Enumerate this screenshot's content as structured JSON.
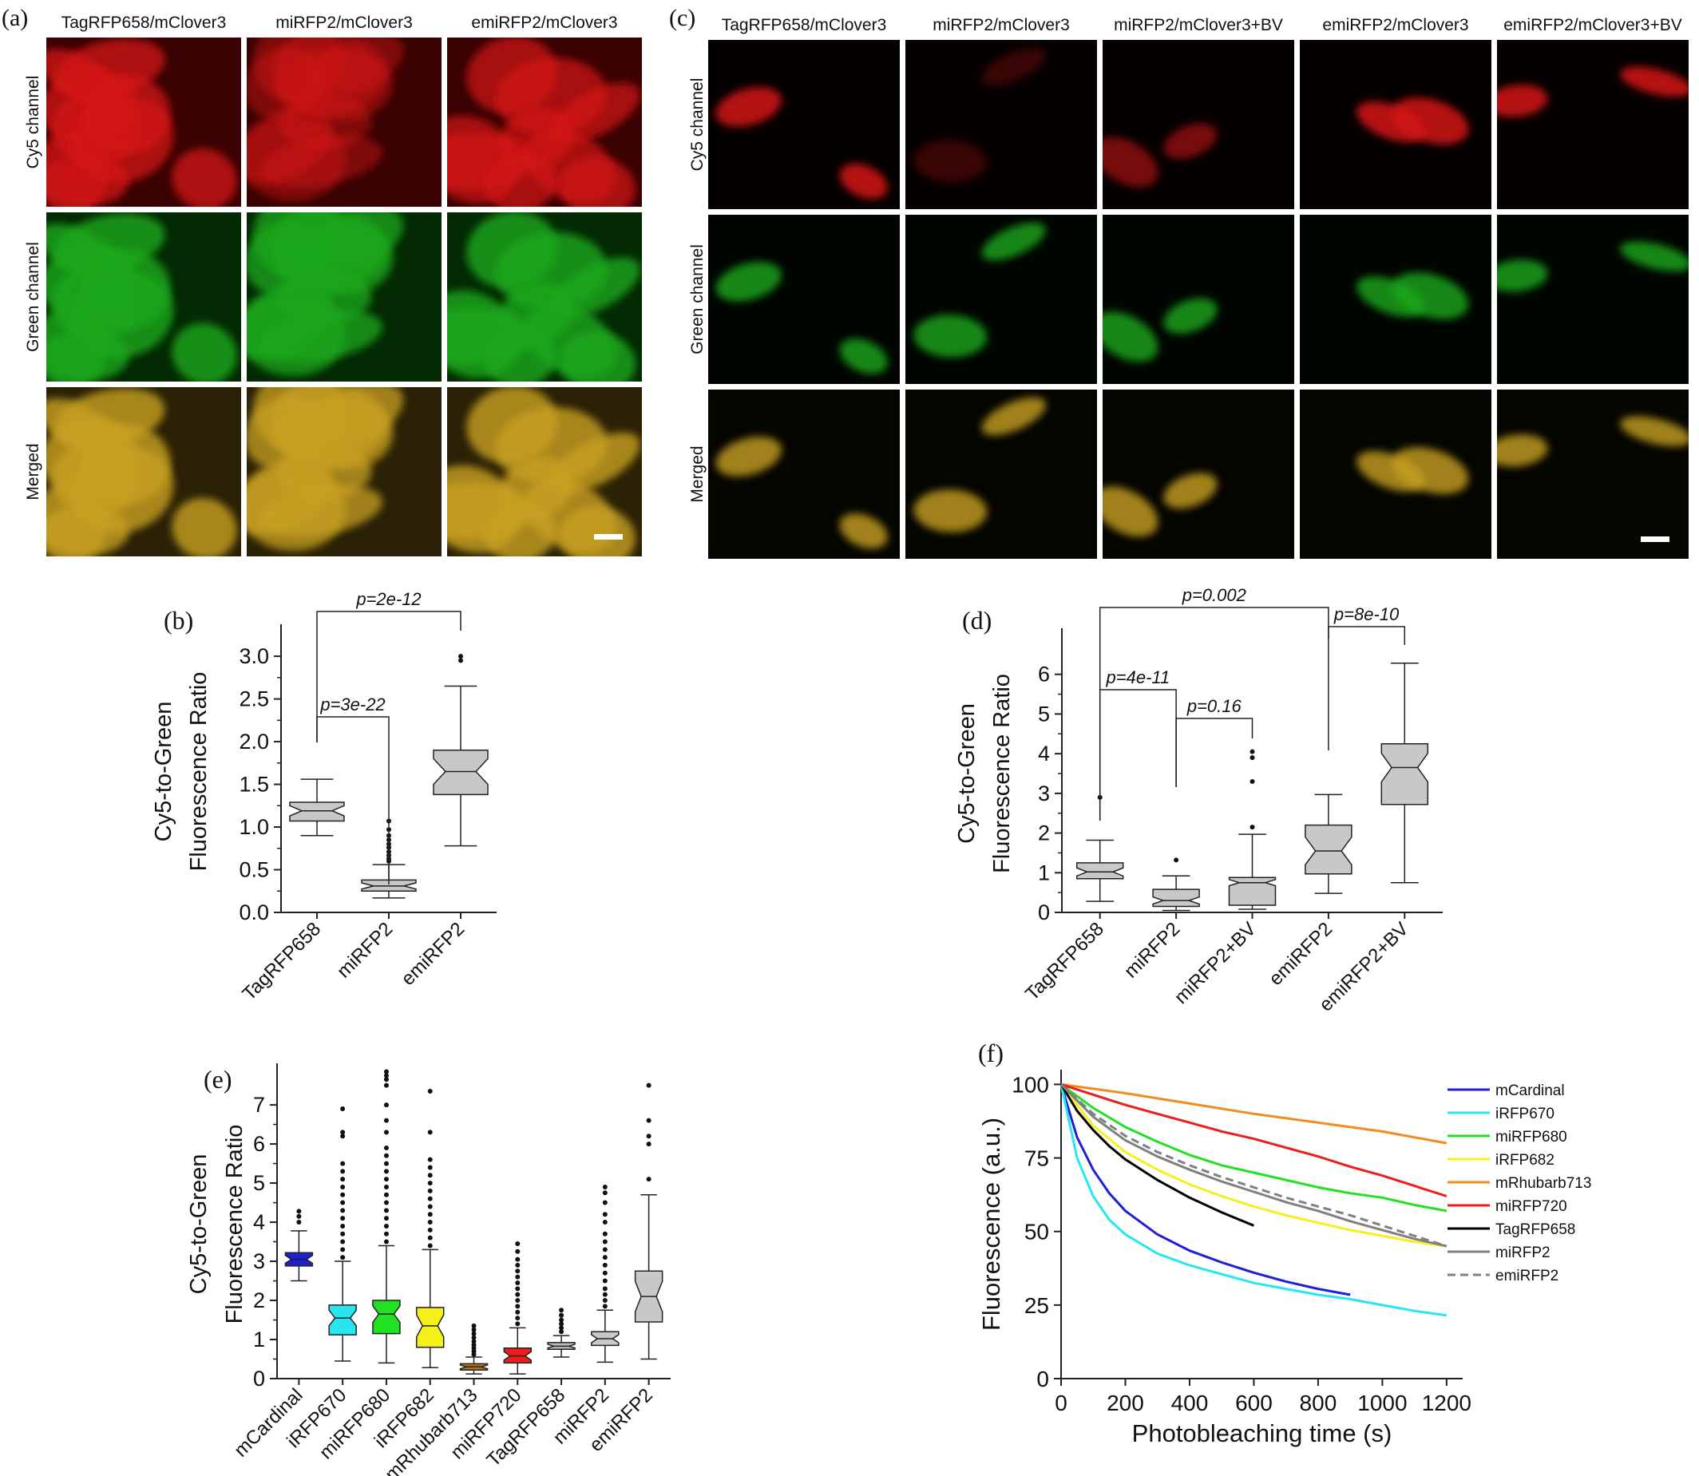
{
  "panels_images": [
    {
      "tag": "(a)",
      "columns": [
        "TagRFP658/mClover3",
        "miRFP2/mClover3",
        "emiRFP2/mClover3"
      ],
      "rows": [
        "Cy5 channel",
        "Green channel",
        "Merged"
      ]
    },
    {
      "tag": "(c)",
      "columns": [
        "TagRFP658/mClover3",
        "miRFP2/mClover3",
        "miRFP2/mClover3+BV",
        "emiRFP2/mClover3",
        "emiRFP2/mClover3+BV"
      ],
      "rows": [
        "Cy5 channel",
        "Green channel",
        "Merged"
      ]
    }
  ],
  "colors": {
    "red_channel": "#d41818",
    "green_channel": "#1fa81f",
    "merged": "#c8a021",
    "box_grey": "#c8c8c8",
    "mCardinal": "#1f1fd6",
    "iRFP670": "#27e6f0",
    "miRFP680": "#22e022",
    "iRFP682": "#f5f01a",
    "mRhubarb713": "#b87414",
    "miRFP720": "#ee1c1c",
    "TagRFP658": "#bdbdbd",
    "miRFP2": "#c8c8c8",
    "emiRFP2": "#c8c8c8"
  },
  "chart_data": [
    {
      "tag": "(b)",
      "type": "boxplot",
      "ylabel_line1": "Cy5-to-Green",
      "ylabel_line2": "Fluorescence Ratio",
      "ylim": [
        0,
        3.3
      ],
      "yticks": [
        "0.0",
        "0.5",
        "1.0",
        "1.5",
        "2.0",
        "2.5",
        "3.0"
      ],
      "categories": [
        "TagRFP658",
        "miRFP2",
        "emiRFP2"
      ],
      "boxes": [
        {
          "name": "TagRFP658",
          "whisker_low": 0.9,
          "q1": 1.07,
          "median": 1.19,
          "q3": 1.29,
          "whisker_high": 1.56,
          "outliers": []
        },
        {
          "name": "miRFP2",
          "whisker_low": 0.17,
          "q1": 0.25,
          "median": 0.31,
          "q3": 0.38,
          "whisker_high": 0.56,
          "outliers": [
            0.6,
            0.63,
            0.67,
            0.71,
            0.76,
            0.8,
            0.85,
            0.9,
            0.97,
            1.07
          ]
        },
        {
          "name": "emiRFP2",
          "whisker_low": 0.78,
          "q1": 1.38,
          "median": 1.65,
          "q3": 1.9,
          "whisker_high": 2.65,
          "outliers": [
            2.95,
            3.0
          ]
        }
      ],
      "brackets": [
        {
          "from": 0,
          "to": 1,
          "label": "p=3e-22"
        },
        {
          "from": 0,
          "to": 2,
          "label": "p=2e-12"
        }
      ]
    },
    {
      "tag": "(d)",
      "type": "boxplot",
      "ylabel_line1": "Cy5-to-Green",
      "ylabel_line2": "Fluorescence Ratio",
      "ylim": [
        0,
        7
      ],
      "yticks": [
        "0",
        "1",
        "2",
        "3",
        "4",
        "5",
        "6"
      ],
      "categories": [
        "TagRFP658",
        "miRFP2",
        "miRFP2+BV",
        "emiRFP2",
        "emiRFP2+BV"
      ],
      "boxes": [
        {
          "name": "TagRFP658",
          "whisker_low": 0.28,
          "q1": 0.85,
          "median": 1.02,
          "q3": 1.25,
          "whisker_high": 1.82,
          "outliers": [
            2.9
          ]
        },
        {
          "name": "miRFP2",
          "whisker_low": 0.05,
          "q1": 0.15,
          "median": 0.3,
          "q3": 0.58,
          "whisker_high": 0.92,
          "outliers": [
            1.32
          ]
        },
        {
          "name": "miRFP2+BV",
          "whisker_low": 0.08,
          "q1": 0.18,
          "median": 0.75,
          "q3": 0.88,
          "whisker_high": 1.97,
          "outliers": [
            2.15,
            3.3,
            3.9,
            4.05
          ]
        },
        {
          "name": "emiRFP2",
          "whisker_low": 0.48,
          "q1": 0.97,
          "median": 1.55,
          "q3": 2.2,
          "whisker_high": 2.97,
          "outliers": []
        },
        {
          "name": "emiRFP2+BV",
          "whisker_low": 0.75,
          "q1": 2.72,
          "median": 3.65,
          "q3": 4.25,
          "whisker_high": 6.28,
          "outliers": []
        }
      ],
      "brackets": [
        {
          "from": 0,
          "to": 1,
          "label": "p=4e-11"
        },
        {
          "from": 1,
          "to": 2,
          "label": "p=0.16"
        },
        {
          "from": 0,
          "to": 3,
          "label": "p=0.002"
        },
        {
          "from": 3,
          "to": 4,
          "label": "p=8e-10"
        }
      ]
    },
    {
      "tag": "(e)",
      "type": "boxplot",
      "ylabel_line1": "Cy5-to-Green",
      "ylabel_line2": "Fluorescence Ratio",
      "ylim": [
        0,
        7.9
      ],
      "yticks": [
        "0",
        "1",
        "2",
        "3",
        "4",
        "5",
        "6",
        "7"
      ],
      "categories": [
        "mCardinal",
        "iRFP670",
        "miRFP680",
        "iRFP682",
        "mRhubarb713",
        "miRFP720",
        "TagRFP658",
        "miRFP2",
        "emiRFP2"
      ],
      "boxes": [
        {
          "name": "mCardinal",
          "whisker_low": 2.5,
          "q1": 2.88,
          "median": 3.05,
          "q3": 3.22,
          "whisker_high": 3.78,
          "outliers": [
            4.0,
            4.15,
            4.28
          ]
        },
        {
          "name": "iRFP670",
          "whisker_low": 0.45,
          "q1": 1.12,
          "median": 1.55,
          "q3": 1.88,
          "whisker_high": 3.0,
          "outliers": [
            3.1,
            3.3,
            3.5,
            3.7,
            3.9,
            4.1,
            4.3,
            4.5,
            4.7,
            4.9,
            5.1,
            5.3,
            5.5,
            6.2,
            6.3,
            6.9
          ]
        },
        {
          "name": "miRFP680",
          "whisker_low": 0.4,
          "q1": 1.15,
          "median": 1.65,
          "q3": 2.0,
          "whisker_high": 3.4,
          "outliers": [
            3.5,
            3.7,
            3.9,
            4.1,
            4.3,
            4.5,
            4.7,
            4.9,
            5.1,
            5.3,
            5.5,
            5.7,
            5.9,
            6.3,
            6.6,
            7.0,
            7.5,
            7.65,
            7.75,
            7.85
          ]
        },
        {
          "name": "iRFP682",
          "whisker_low": 0.28,
          "q1": 0.8,
          "median": 1.35,
          "q3": 1.82,
          "whisker_high": 3.3,
          "outliers": [
            3.4,
            3.6,
            3.8,
            4.0,
            4.2,
            4.4,
            4.6,
            4.8,
            5.0,
            5.2,
            5.4,
            5.6,
            6.3,
            7.35
          ]
        },
        {
          "name": "mRhubarb713",
          "whisker_low": 0.12,
          "q1": 0.22,
          "median": 0.3,
          "q3": 0.38,
          "whisker_high": 0.55,
          "outliers": [
            0.62,
            0.7,
            0.78,
            0.86,
            0.95,
            1.05,
            1.15,
            1.25,
            1.35
          ]
        },
        {
          "name": "miRFP720",
          "whisker_low": 0.12,
          "q1": 0.4,
          "median": 0.58,
          "q3": 0.78,
          "whisker_high": 1.3,
          "outliers": [
            1.4,
            1.55,
            1.7,
            1.85,
            2.0,
            2.15,
            2.3,
            2.45,
            2.6,
            2.75,
            2.9,
            3.05,
            3.25,
            3.45
          ]
        },
        {
          "name": "TagRFP658",
          "whisker_low": 0.55,
          "q1": 0.75,
          "median": 0.83,
          "q3": 0.92,
          "whisker_high": 1.1,
          "outliers": [
            1.2,
            1.3,
            1.4,
            1.5,
            1.62,
            1.75
          ]
        },
        {
          "name": "miRFP2",
          "whisker_low": 0.42,
          "q1": 0.85,
          "median": 1.02,
          "q3": 1.2,
          "whisker_high": 1.75,
          "outliers": [
            1.85,
            2.0,
            2.15,
            2.3,
            2.5,
            2.7,
            2.9,
            3.1,
            3.3,
            3.5,
            3.7,
            4.0,
            4.2,
            4.5,
            4.75,
            4.9
          ]
        },
        {
          "name": "emiRFP2",
          "whisker_low": 0.5,
          "q1": 1.45,
          "median": 2.1,
          "q3": 2.75,
          "whisker_high": 4.7,
          "outliers": [
            5.1,
            6.0,
            6.2,
            6.6,
            7.5
          ]
        }
      ]
    },
    {
      "tag": "(f)",
      "type": "line",
      "xlabel": "Photobleaching time (s)",
      "ylabel": "Fluorescence (a.u.)",
      "xlim": [
        0,
        1250
      ],
      "ylim": [
        0,
        105
      ],
      "xticks": [
        "0",
        "200",
        "400",
        "600",
        "800",
        "1000",
        "1200"
      ],
      "yticks": [
        "0",
        "25",
        "50",
        "75",
        "100"
      ],
      "series": [
        {
          "name": "mCardinal",
          "x": [
            0,
            50,
            100,
            150,
            200,
            300,
            400,
            500,
            600,
            700,
            800,
            900
          ],
          "y": [
            100,
            82,
            71,
            63,
            57,
            49,
            43.5,
            39.5,
            36,
            33,
            30.5,
            28.5
          ]
        },
        {
          "name": "iRFP670",
          "x": [
            0,
            50,
            100,
            150,
            200,
            300,
            400,
            500,
            600,
            700,
            800,
            900,
            1000,
            1100,
            1200
          ],
          "y": [
            100,
            75,
            62,
            54,
            49,
            42.5,
            38.5,
            35.5,
            32.5,
            30.5,
            28.5,
            27,
            25,
            23,
            21.5
          ]
        },
        {
          "name": "miRFP680",
          "x": [
            0,
            100,
            200,
            300,
            400,
            500,
            600,
            700,
            800,
            900,
            1000,
            1100,
            1200
          ],
          "y": [
            100,
            92,
            85.5,
            80.5,
            76,
            72.5,
            70,
            67.5,
            65,
            63,
            61.5,
            59,
            57
          ]
        },
        {
          "name": "iRFP682",
          "x": [
            0,
            100,
            200,
            300,
            400,
            500,
            600,
            700,
            800,
            900,
            1000,
            1100,
            1200
          ],
          "y": [
            100,
            86,
            77,
            71,
            66,
            62,
            58.5,
            55.5,
            53,
            50.5,
            48.5,
            46.5,
            45
          ]
        },
        {
          "name": "mRhubarb713",
          "x": [
            0,
            200,
            400,
            600,
            800,
            1000,
            1200
          ],
          "y": [
            100,
            97,
            93.5,
            90,
            87,
            84,
            80
          ]
        },
        {
          "name": "miRFP720",
          "x": [
            0,
            100,
            200,
            300,
            400,
            500,
            600,
            700,
            800,
            900,
            1000,
            1100,
            1200
          ],
          "y": [
            100,
            96.5,
            93,
            90,
            87,
            84,
            81.5,
            78.5,
            75.5,
            72,
            69,
            65.5,
            62
          ]
        },
        {
          "name": "TagRFP658",
          "x": [
            0,
            50,
            100,
            150,
            200,
            300,
            400,
            500,
            600
          ],
          "y": [
            100,
            91,
            84.5,
            79,
            74.5,
            67.5,
            61.5,
            56.5,
            52
          ]
        },
        {
          "name": "miRFP2",
          "x": [
            0,
            100,
            200,
            300,
            400,
            500,
            600,
            700,
            800,
            900,
            1000,
            1100,
            1200
          ],
          "y": [
            100,
            89,
            81,
            75.5,
            71,
            67,
            63.5,
            60,
            57,
            53.5,
            50.5,
            47.5,
            45
          ]
        },
        {
          "name": "emiRFP2",
          "dashed": true,
          "x": [
            0,
            100,
            200,
            300,
            400,
            500,
            600,
            700,
            800,
            900,
            1000,
            1100,
            1200
          ],
          "y": [
            100,
            90,
            82.5,
            77,
            72.5,
            68.5,
            65,
            61.5,
            58.5,
            55.5,
            52,
            48.5,
            45
          ]
        }
      ],
      "series_colors": [
        "#1f1fd6",
        "#27e6f0",
        "#22e022",
        "#f5f01a",
        "#f08c1e",
        "#ee1c1c",
        "#000000",
        "#808080",
        "#808080"
      ]
    }
  ]
}
